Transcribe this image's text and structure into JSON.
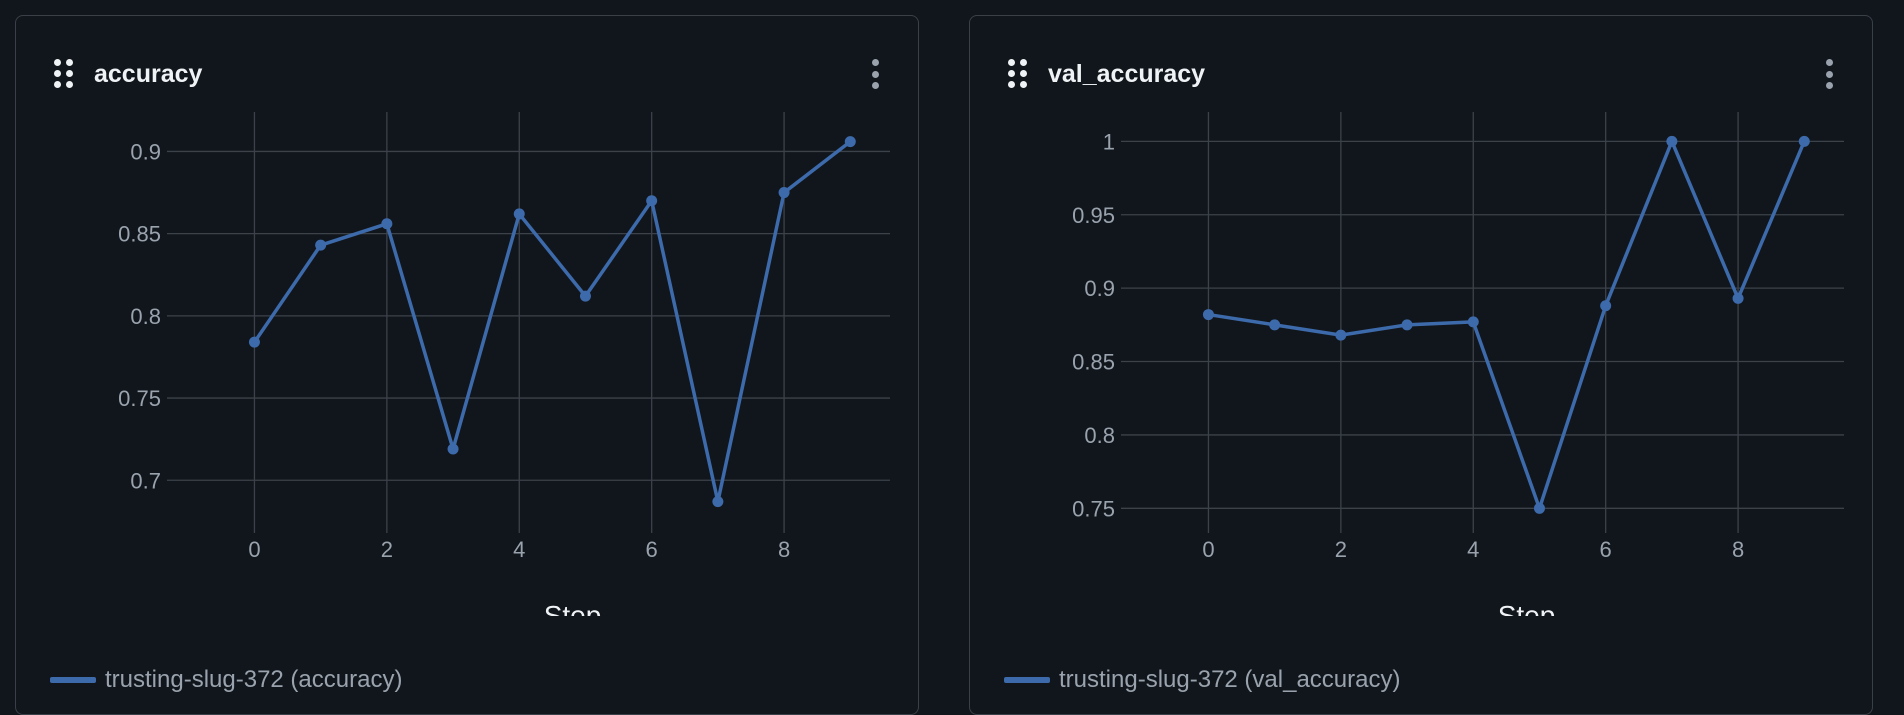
{
  "colors": {
    "line": "#3d6aab",
    "grid": "#3c4249",
    "tick_text": "#9aa3ad",
    "title_text": "#f0f3f6",
    "background": "#11161c"
  },
  "icons": {
    "drag": "drag-handle-icon",
    "more": "more-vertical-icon"
  },
  "panels": [
    {
      "title": "accuracy",
      "legend_label": "trusting-slug-372 (accuracy)"
    },
    {
      "title": "val_accuracy",
      "legend_label": "trusting-slug-372 (val_accuracy)"
    }
  ],
  "chart_data": [
    {
      "type": "line",
      "title": "accuracy",
      "xlabel": "Step",
      "ylabel": "",
      "x": [
        0,
        1,
        2,
        3,
        4,
        5,
        6,
        7,
        8,
        9
      ],
      "series": [
        {
          "name": "trusting-slug-372 (accuracy)",
          "values": [
            0.784,
            0.843,
            0.856,
            0.719,
            0.862,
            0.812,
            0.87,
            0.687,
            0.875,
            0.906
          ]
        }
      ],
      "xlim": [
        -1.2,
        9.6
      ],
      "ylim": [
        0.674,
        0.924
      ],
      "xticks": [
        0,
        2,
        4,
        6,
        8
      ],
      "xtick_labels": [
        "0",
        "2",
        "4",
        "6",
        "8"
      ],
      "yticks": [
        0.7,
        0.75,
        0.8,
        0.85,
        0.9
      ],
      "ytick_labels": [
        "0.7",
        "0.75",
        "0.8",
        "0.85",
        "0.9"
      ],
      "grid": true,
      "legend": "bottom-left"
    },
    {
      "type": "line",
      "title": "val_accuracy",
      "xlabel": "Step",
      "ylabel": "",
      "x": [
        0,
        1,
        2,
        3,
        4,
        5,
        6,
        7,
        8,
        9
      ],
      "series": [
        {
          "name": "trusting-slug-372 (val_accuracy)",
          "values": [
            0.882,
            0.875,
            0.868,
            0.875,
            0.877,
            0.75,
            0.888,
            1.0,
            0.893,
            1.0
          ]
        }
      ],
      "xlim": [
        -1.2,
        9.6
      ],
      "ylim": [
        0.74,
        1.02
      ],
      "xticks": [
        0,
        2,
        4,
        6,
        8
      ],
      "xtick_labels": [
        "0",
        "2",
        "4",
        "6",
        "8"
      ],
      "yticks": [
        0.75,
        0.8,
        0.85,
        0.9,
        0.95,
        1
      ],
      "ytick_labels": [
        "0.75",
        "0.8",
        "0.85",
        "0.9",
        "0.95",
        "1"
      ],
      "grid": true,
      "legend": "bottom-left"
    }
  ]
}
